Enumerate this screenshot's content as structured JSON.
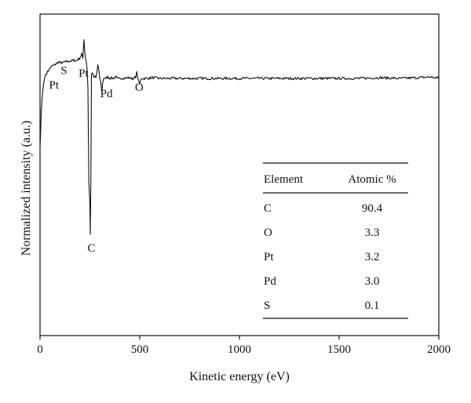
{
  "chart_data": {
    "type": "line",
    "xlabel": "Kinetic energy (eV)",
    "ylabel": "Normalized intensity (a.u.)",
    "xlim": [
      0,
      2000
    ],
    "x_ticks": [
      "0",
      "500",
      "1000",
      "1500",
      "2000"
    ],
    "y_ticks_labeled": false,
    "grid": false,
    "legend": "none",
    "series_color": "#111111",
    "series": [
      {
        "x": [
          0,
          3,
          6,
          10,
          15,
          20,
          25,
          30,
          40,
          50,
          60,
          70,
          80,
          90,
          100,
          110,
          120,
          130,
          140,
          150,
          160,
          170,
          180,
          190,
          200,
          205,
          210,
          215,
          220,
          225,
          228,
          232,
          236,
          240,
          245,
          250,
          252,
          255,
          258,
          262,
          266,
          270,
          275,
          280,
          285,
          290,
          295,
          300,
          305,
          310,
          315,
          320,
          330,
          340,
          350,
          360,
          370,
          380,
          390,
          400,
          420,
          440,
          460,
          470,
          480,
          485,
          490,
          495,
          500,
          505,
          510,
          520,
          540,
          560,
          600,
          700,
          800,
          900,
          1000,
          1100,
          1200,
          1300,
          1400,
          1500,
          1600,
          1700,
          1800,
          1900,
          1960,
          1990,
          1995,
          2000
        ],
        "y": [
          -0.92,
          -0.7,
          -0.45,
          -0.27,
          -0.12,
          -0.02,
          0.05,
          0.08,
          0.12,
          0.16,
          0.19,
          0.2,
          0.22,
          0.24,
          0.24,
          0.23,
          0.24,
          0.25,
          0.25,
          0.26,
          0.26,
          0.27,
          0.26,
          0.28,
          0.3,
          0.33,
          0.36,
          0.28,
          0.55,
          0.38,
          0.3,
          0.26,
          0.15,
          -0.1,
          -1.4,
          -1.7,
          -2.12,
          -1.3,
          0.05,
          0.1,
          0.06,
          0.03,
          0.05,
          0.03,
          0.1,
          0.2,
          0.12,
          0.02,
          -0.05,
          -0.15,
          -0.03,
          0.03,
          0.02,
          0.04,
          0.02,
          0.03,
          0.02,
          0.04,
          0.01,
          0.03,
          0.02,
          0.03,
          0.02,
          0.02,
          0.04,
          0.1,
          0.04,
          -0.03,
          -0.06,
          0.0,
          0.02,
          0.02,
          0.02,
          0.03,
          0.02,
          0.02,
          0.02,
          0.02,
          0.02,
          0.02,
          0.02,
          0.02,
          0.02,
          0.02,
          0.02,
          0.03,
          0.02,
          0.03,
          0.04,
          0.02,
          0.05,
          0.02
        ]
      }
    ],
    "annotations": [
      {
        "text": "Pt",
        "x": 70,
        "y": -0.12
      },
      {
        "text": "S",
        "x": 120,
        "y": 0.08
      },
      {
        "text": "Pt",
        "x": 218,
        "y": 0.04
      },
      {
        "text": "Pd",
        "x": 333,
        "y": -0.24
      },
      {
        "text": "O",
        "x": 497,
        "y": -0.15
      },
      {
        "text": "C",
        "x": 258,
        "y": -2.35
      }
    ],
    "inset_table": {
      "headers": [
        "Element",
        "Atomic %"
      ],
      "rows": [
        [
          "C",
          "90.4"
        ],
        [
          "O",
          "3.3"
        ],
        [
          "Pt",
          "3.2"
        ],
        [
          "Pd",
          "3.0"
        ],
        [
          "S",
          "0.1"
        ]
      ]
    }
  }
}
